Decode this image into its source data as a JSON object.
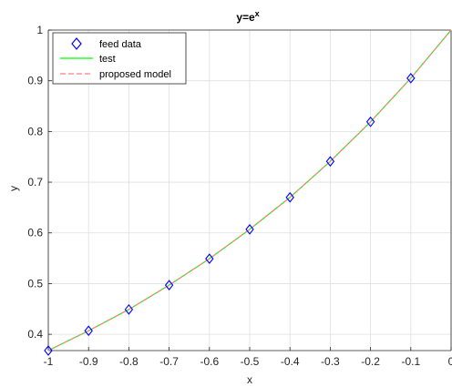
{
  "chart_data": {
    "type": "line",
    "title_base": "y=e",
    "title_sup": "x",
    "xlabel": "x",
    "ylabel": "y",
    "xlim": [
      -1,
      0
    ],
    "ylim": [
      0.3679,
      1
    ],
    "x_ticks": [
      -1,
      -0.9,
      -0.8,
      -0.7,
      -0.6,
      -0.5,
      -0.4,
      -0.3,
      -0.2,
      -0.1,
      0
    ],
    "x_tick_labels": [
      "-1",
      "-0.9",
      "-0.8",
      "-0.7",
      "-0.6",
      "-0.5",
      "-0.4",
      "-0.3",
      "-0.2",
      "-0.1",
      "0"
    ],
    "y_ticks": [
      0.4,
      0.5,
      0.6,
      0.7,
      0.8,
      0.9,
      1
    ],
    "y_tick_labels": [
      "0.4",
      "0.5",
      "0.6",
      "0.7",
      "0.8",
      "0.9",
      "1"
    ],
    "grid": true,
    "legend_position": "top-left",
    "series": [
      {
        "name": "feed data",
        "style": "markers",
        "marker": "diamond",
        "color": "#0000ff",
        "x": [
          -1,
          -0.9,
          -0.8,
          -0.7,
          -0.6,
          -0.5,
          -0.4,
          -0.3,
          -0.2,
          -0.1
        ],
        "y": [
          0.368,
          0.407,
          0.449,
          0.497,
          0.549,
          0.607,
          0.67,
          0.741,
          0.819,
          0.905
        ]
      },
      {
        "name": "test",
        "style": "solid-line",
        "color": "#00ff00",
        "x": [
          -1,
          -0.9,
          -0.8,
          -0.7,
          -0.6,
          -0.5,
          -0.4,
          -0.3,
          -0.2,
          -0.1,
          0
        ],
        "y": [
          0.368,
          0.407,
          0.449,
          0.497,
          0.549,
          0.607,
          0.67,
          0.741,
          0.819,
          0.905,
          1.0
        ]
      },
      {
        "name": "proposed model",
        "style": "dashed-line",
        "color": "#ff7f7f",
        "x": [
          -1,
          -0.9,
          -0.8,
          -0.7,
          -0.6,
          -0.5,
          -0.4,
          -0.3,
          -0.2,
          -0.1,
          0
        ],
        "y": [
          0.368,
          0.407,
          0.449,
          0.497,
          0.549,
          0.607,
          0.67,
          0.741,
          0.819,
          0.905,
          1.0
        ]
      }
    ]
  }
}
